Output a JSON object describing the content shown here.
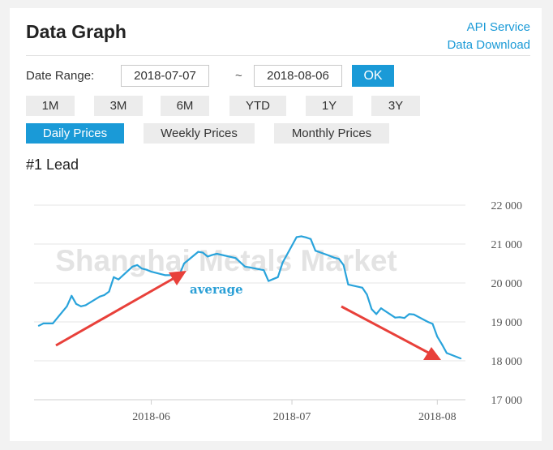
{
  "header": {
    "title": "Data Graph",
    "api_link": "API Service",
    "download_link": "Data Download"
  },
  "date_range": {
    "label": "Date Range:",
    "start": "2018-07-07",
    "separator": "~",
    "end": "2018-08-06",
    "ok_label": "OK"
  },
  "range_buttons": [
    {
      "label": "1M",
      "active": true
    },
    {
      "label": "3M",
      "active": false
    },
    {
      "label": "6M",
      "active": false
    },
    {
      "label": "YTD",
      "active": false
    },
    {
      "label": "1Y",
      "active": false
    },
    {
      "label": "3Y",
      "active": false
    }
  ],
  "price_buttons": [
    {
      "label": "Daily Prices",
      "active": true
    },
    {
      "label": "Weekly Prices",
      "active": false
    },
    {
      "label": "Monthly Prices",
      "active": false
    }
  ],
  "metal_name": "#1 Lead",
  "colors": {
    "accent": "#1a9ad7",
    "line": "#29a3db",
    "arrow": "#e8403a",
    "annotation": "#2a9fd6"
  },
  "chart_data": {
    "type": "line",
    "watermark": "Shanghai Metals Market",
    "annotation": "average",
    "ylim": [
      17000,
      22000
    ],
    "yticks": [
      17000,
      18000,
      19000,
      20000,
      21000,
      22000
    ],
    "ytick_labels": [
      "17 000",
      "18 000",
      "19 000",
      "20 000",
      "21 000",
      "22 000"
    ],
    "xtick_labels": [
      "2018-06",
      "2018-07",
      "2018-08"
    ],
    "grid": true,
    "series": [
      {
        "points": [
          [
            "2018-05-08",
            18900
          ],
          [
            "2018-05-09",
            18960
          ],
          [
            "2018-05-10",
            18960
          ],
          [
            "2018-05-11",
            18960
          ],
          [
            "2018-05-14",
            19400
          ],
          [
            "2018-05-15",
            19670
          ],
          [
            "2018-05-16",
            19460
          ],
          [
            "2018-05-17",
            19400
          ],
          [
            "2018-05-18",
            19430
          ],
          [
            "2018-05-21",
            19650
          ],
          [
            "2018-05-22",
            19690
          ],
          [
            "2018-05-23",
            19780
          ],
          [
            "2018-05-24",
            20150
          ],
          [
            "2018-05-25",
            20090
          ],
          [
            "2018-05-28",
            20420
          ],
          [
            "2018-05-29",
            20460
          ],
          [
            "2018-05-30",
            20370
          ],
          [
            "2018-05-31",
            20340
          ],
          [
            "2018-06-01",
            20290
          ],
          [
            "2018-06-04",
            20200
          ],
          [
            "2018-06-05",
            20200
          ],
          [
            "2018-06-06",
            20200
          ],
          [
            "2018-06-07",
            20210
          ],
          [
            "2018-06-08",
            20500
          ],
          [
            "2018-06-11",
            20800
          ],
          [
            "2018-06-12",
            20780
          ],
          [
            "2018-06-13",
            20680
          ],
          [
            "2018-06-14",
            20720
          ],
          [
            "2018-06-15",
            20750
          ],
          [
            "2018-06-19",
            20640
          ],
          [
            "2018-06-20",
            20530
          ],
          [
            "2018-06-21",
            20420
          ],
          [
            "2018-06-22",
            20400
          ],
          [
            "2018-06-25",
            20330
          ],
          [
            "2018-06-26",
            20050
          ],
          [
            "2018-06-27",
            20100
          ],
          [
            "2018-06-28",
            20150
          ],
          [
            "2018-06-29",
            20520
          ],
          [
            "2018-07-02",
            21180
          ],
          [
            "2018-07-03",
            21200
          ],
          [
            "2018-07-04",
            21170
          ],
          [
            "2018-07-05",
            21130
          ],
          [
            "2018-07-06",
            20830
          ],
          [
            "2018-07-09",
            20700
          ],
          [
            "2018-07-10",
            20650
          ],
          [
            "2018-07-11",
            20620
          ],
          [
            "2018-07-12",
            20460
          ],
          [
            "2018-07-13",
            19960
          ],
          [
            "2018-07-16",
            19880
          ],
          [
            "2018-07-17",
            19700
          ],
          [
            "2018-07-18",
            19330
          ],
          [
            "2018-07-19",
            19200
          ],
          [
            "2018-07-20",
            19350
          ],
          [
            "2018-07-23",
            19110
          ],
          [
            "2018-07-24",
            19120
          ],
          [
            "2018-07-25",
            19100
          ],
          [
            "2018-07-26",
            19200
          ],
          [
            "2018-07-27",
            19190
          ],
          [
            "2018-07-30",
            19000
          ],
          [
            "2018-07-31",
            18950
          ],
          [
            "2018-08-01",
            18620
          ],
          [
            "2018-08-02",
            18420
          ],
          [
            "2018-08-03",
            18200
          ],
          [
            "2018-08-06",
            18060
          ]
        ]
      }
    ]
  }
}
